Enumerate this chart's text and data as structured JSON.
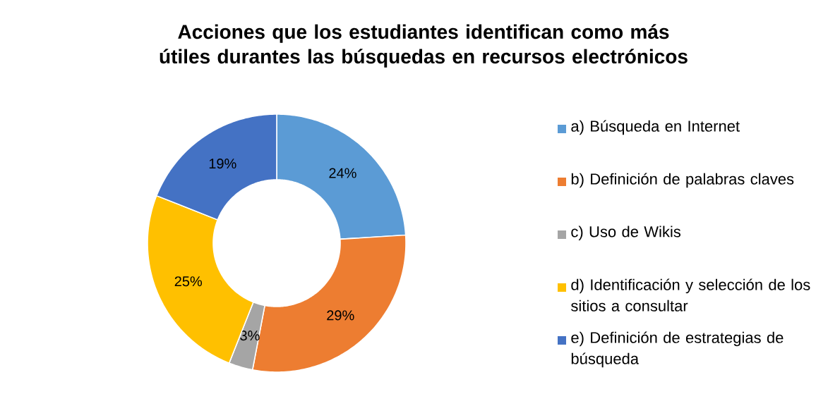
{
  "chart_data": {
    "type": "donut",
    "title": "Acciones que los estudiantes identifican como más útiles durantes las búsquedas en recursos electrónicos",
    "categories": [
      "a) Búsqueda en Internet",
      "b) Definición de palabras claves",
      "c) Uso de Wikis",
      "d) Identificación y selección de los sitios a consultar",
      "e) Definición de estrategias de búsqueda"
    ],
    "values": [
      24,
      29,
      3,
      25,
      19
    ],
    "value_labels": [
      "24%",
      "29%",
      "3%",
      "25%",
      "19%"
    ],
    "colors": [
      "#5b9bd5",
      "#ed7d31",
      "#a5a5a5",
      "#ffc000",
      "#4472c4"
    ],
    "legend": "right"
  }
}
